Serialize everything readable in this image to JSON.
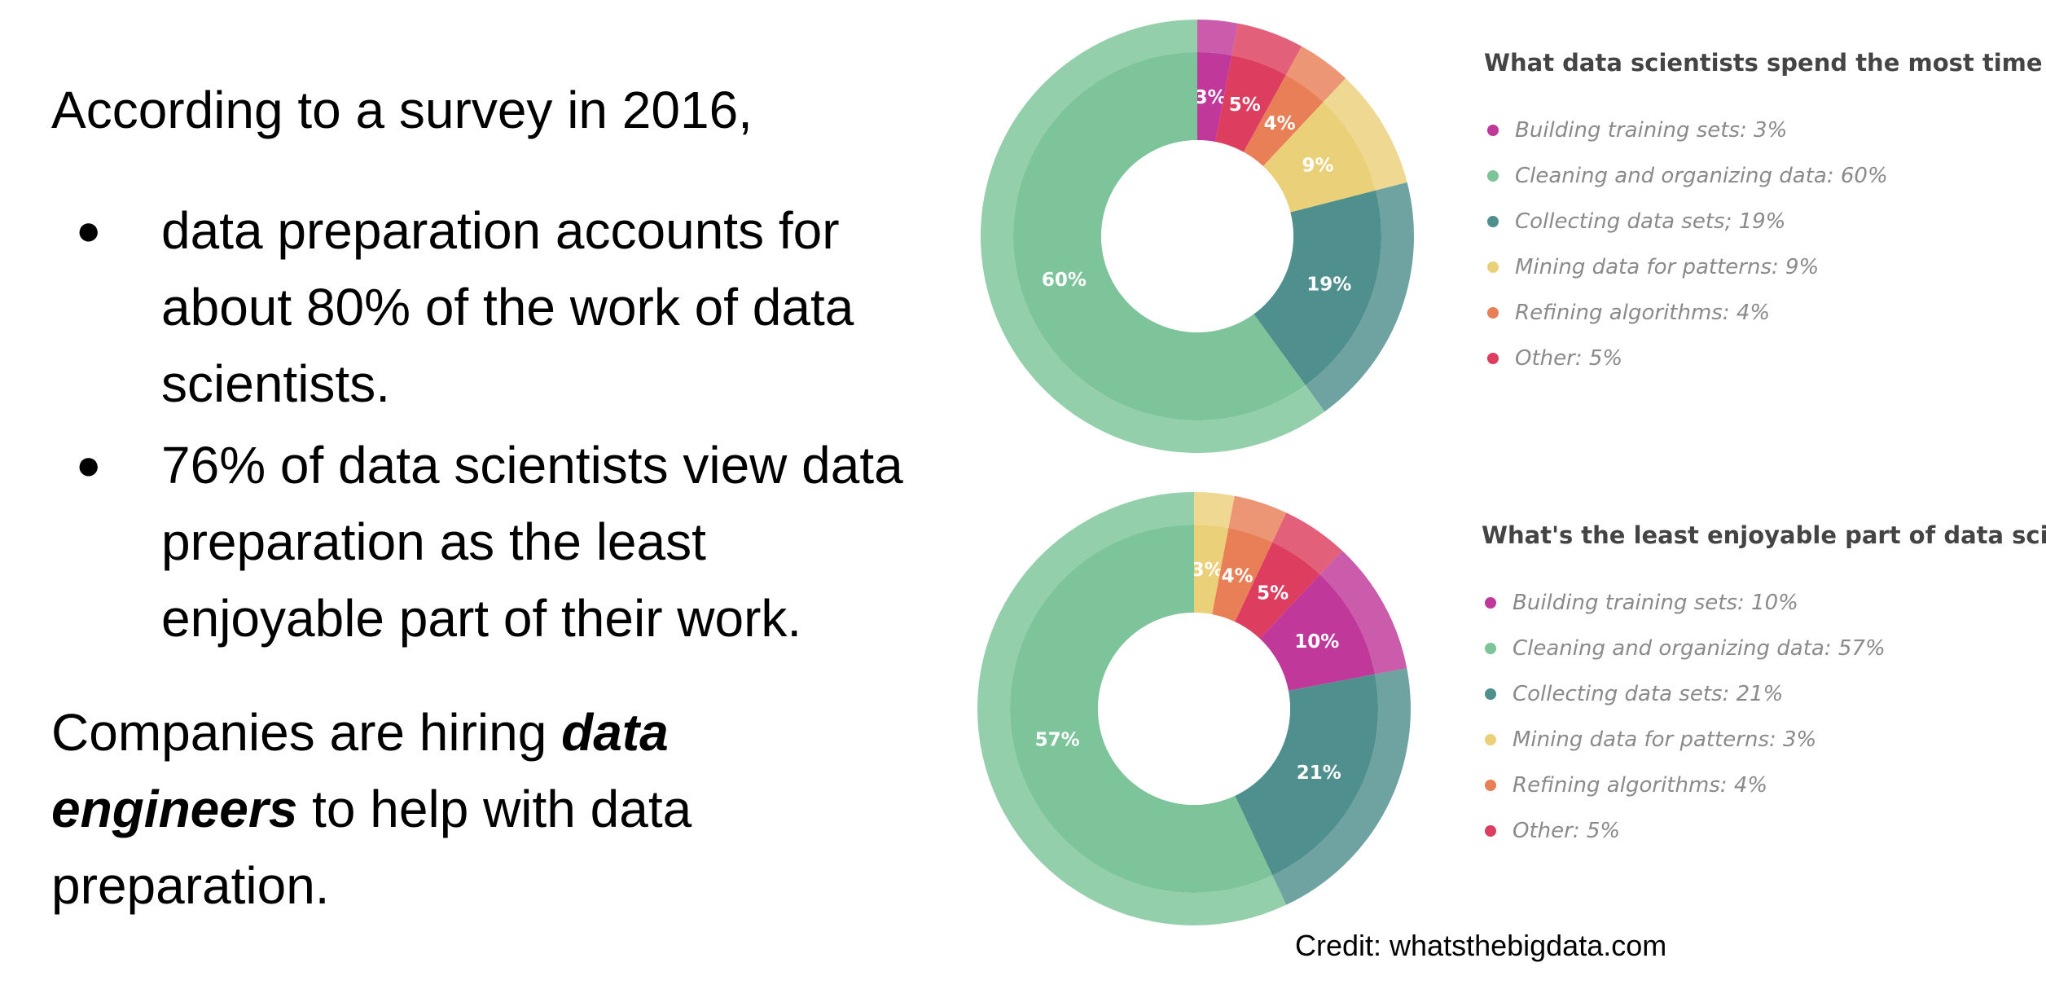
{
  "slide": {
    "intro": "According to a survey in 2016,",
    "bullets": [
      "data preparation accounts for about 80% of the work of data scientists.",
      "76% of data scientists view data preparation as the least enjoyable part of their work."
    ],
    "closing_before": "Companies are hiring ",
    "closing_emphasis": "data engineers",
    "closing_after": " to help with data preparation.",
    "credit": "Credit: whatsthebigdata.com"
  },
  "chart_data": [
    {
      "type": "pie",
      "title": "What data scientists spend the most time doing",
      "labels": [
        "Building training sets",
        "Cleaning and organizing data",
        "Collecting data sets",
        "Mining data for patterns",
        "Refining algorithms",
        "Other"
      ],
      "values": [
        3,
        60,
        19,
        9,
        4,
        5
      ],
      "legend_entries": [
        "Building training sets: 3%",
        "Cleaning and organizing data: 60%",
        "Collecting data sets; 19%",
        "Mining data for patterns: 9%",
        "Refining algorithms: 4%",
        "Other: 5%"
      ],
      "slice_order": [
        0,
        5,
        4,
        3,
        2,
        1
      ],
      "colors": [
        "#c0389a",
        "#7dc49a",
        "#4f8f8e",
        "#ebd07a",
        "#e97f57",
        "#dd3d5e"
      ],
      "legend_placement": "right"
    },
    {
      "type": "pie",
      "title": "What's the least enjoyable part of data science?",
      "labels": [
        "Building training sets",
        "Cleaning and organizing data",
        "Collecting data sets",
        "Mining data for patterns",
        "Refining algorithms",
        "Other"
      ],
      "values": [
        10,
        57,
        21,
        3,
        4,
        5
      ],
      "legend_entries": [
        "Building training sets: 10%",
        "Cleaning and organizing data: 57%",
        "Collecting data sets: 21%",
        "Mining data for patterns: 3%",
        "Refining algorithms: 4%",
        "Other: 5%"
      ],
      "slice_order": [
        3,
        4,
        5,
        0,
        2,
        1
      ],
      "colors": [
        "#c0389a",
        "#7dc49a",
        "#4f8f8e",
        "#ebd07a",
        "#e97f57",
        "#dd3d5e"
      ],
      "legend_placement": "right"
    }
  ]
}
